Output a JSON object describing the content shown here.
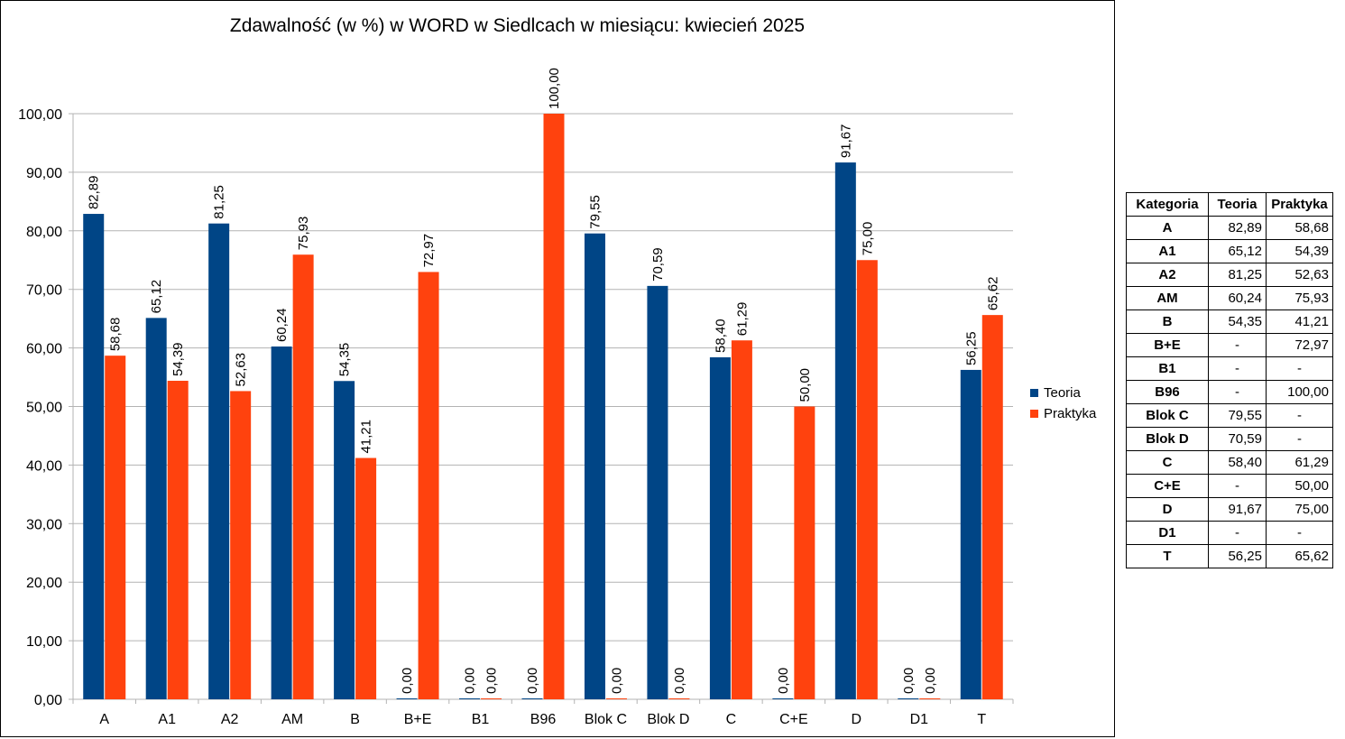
{
  "chart_data": {
    "type": "bar",
    "title": "Zdawalność (w %) w WORD w Siedlcach w miesiącu: kwiecień 2025",
    "categories": [
      "A",
      "A1",
      "A2",
      "AM",
      "B",
      "B+E",
      "B1",
      "B96",
      "Blok C",
      "Blok D",
      "C",
      "C+E",
      "D",
      "D1",
      "T"
    ],
    "series": [
      {
        "name": "Teoria",
        "color": "#004586",
        "values": [
          82.89,
          65.12,
          81.25,
          60.24,
          54.35,
          0.0,
          0.0,
          0.0,
          79.55,
          70.59,
          58.4,
          0.0,
          91.67,
          0.0,
          56.25
        ]
      },
      {
        "name": "Praktyka",
        "color": "#ff420e",
        "values": [
          58.68,
          54.39,
          52.63,
          75.93,
          41.21,
          72.97,
          0.0,
          100.0,
          0.0,
          0.0,
          61.29,
          50.0,
          75.0,
          0.0,
          65.62
        ]
      }
    ],
    "ylim": [
      0,
      100
    ],
    "yticks": [
      "0,00",
      "10,00",
      "20,00",
      "30,00",
      "40,00",
      "50,00",
      "60,00",
      "70,00",
      "80,00",
      "90,00",
      "100,00"
    ],
    "grid": true,
    "legend": "right",
    "gridline_color": "#b3b3b3"
  },
  "table": {
    "headers": [
      "Kategoria",
      "Teoria",
      "Praktyka"
    ],
    "rows": [
      [
        "A",
        "82,89",
        "58,68"
      ],
      [
        "A1",
        "65,12",
        "54,39"
      ],
      [
        "A2",
        "81,25",
        "52,63"
      ],
      [
        "AM",
        "60,24",
        "75,93"
      ],
      [
        "B",
        "54,35",
        "41,21"
      ],
      [
        "B+E",
        "-",
        "72,97"
      ],
      [
        "B1",
        "-",
        "-"
      ],
      [
        "B96",
        "-",
        "100,00"
      ],
      [
        "Blok C",
        "79,55",
        "-"
      ],
      [
        "Blok D",
        "70,59",
        "-"
      ],
      [
        "C",
        "58,40",
        "61,29"
      ],
      [
        "C+E",
        "-",
        "50,00"
      ],
      [
        "D",
        "91,67",
        "75,00"
      ],
      [
        "D1",
        "-",
        "-"
      ],
      [
        "T",
        "56,25",
        "65,62"
      ]
    ]
  }
}
